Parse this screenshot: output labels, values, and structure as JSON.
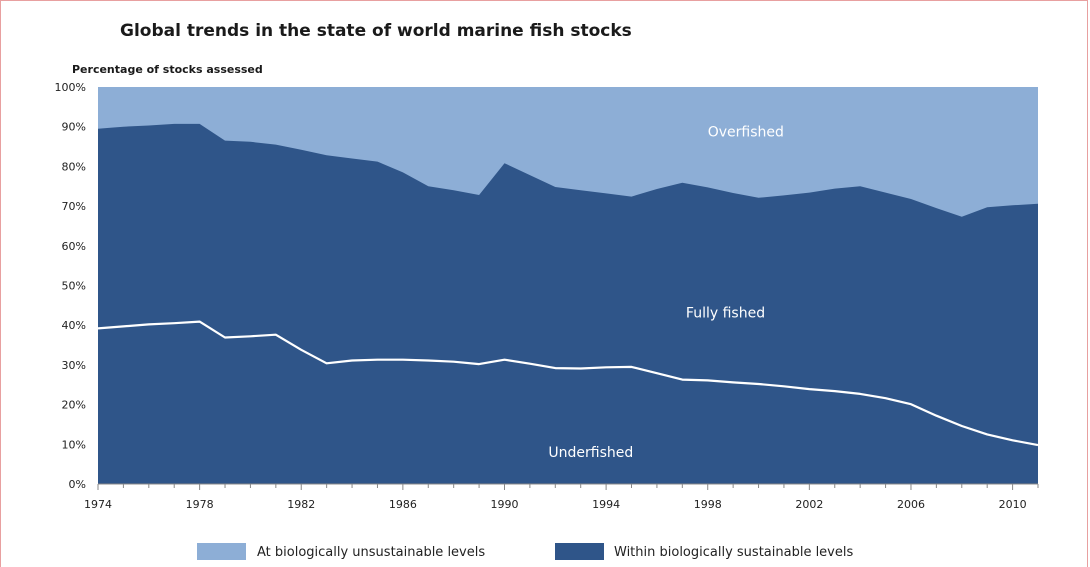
{
  "chart_data": {
    "type": "area",
    "title": "Global trends in the state of world marine fish stocks",
    "ylabel": "Percentage of stocks assessed",
    "xlabel": "",
    "xlim": [
      1974,
      2011
    ],
    "ylim": [
      0,
      100
    ],
    "x_ticks": [
      1974,
      1978,
      1982,
      1986,
      1990,
      1994,
      1998,
      2002,
      2006,
      2010
    ],
    "y_ticks": [
      "0%",
      "10%",
      "20%",
      "30%",
      "40%",
      "50%",
      "60%",
      "70%",
      "80%",
      "90%",
      "100%"
    ],
    "y_tick_values": [
      0,
      10,
      20,
      30,
      40,
      50,
      60,
      70,
      80,
      90,
      100
    ],
    "grid": false,
    "legend_position": "bottom",
    "series": [
      {
        "name": "At biologically unsustainable levels",
        "color": "#8daed6",
        "upper_boundary": 100
      },
      {
        "name": "Within biologically sustainable levels",
        "color": "#2f5589",
        "x": [
          1974,
          1975,
          1976,
          1977,
          1978,
          1979,
          1980,
          1981,
          1982,
          1983,
          1984,
          1985,
          1986,
          1987,
          1988,
          1989,
          1990,
          1991,
          1992,
          1993,
          1994,
          1995,
          1996,
          1997,
          1998,
          1999,
          2000,
          2001,
          2002,
          2003,
          2004,
          2005,
          2006,
          2007,
          2008,
          2009,
          2010,
          2011
        ],
        "values": [
          89.5,
          90,
          90.3,
          90.7,
          90.7,
          86.5,
          86.2,
          85.5,
          84.2,
          82.8,
          82,
          81.2,
          78.5,
          75,
          74,
          72.8,
          80.8,
          77.8,
          74.8,
          74,
          73.2,
          72.4,
          74.3,
          75.9,
          74.7,
          73.3,
          72.1,
          72.7,
          73.4,
          74.4,
          75,
          73.4,
          71.8,
          69.5,
          67.3,
          69.7,
          70.2,
          70.6
        ]
      }
    ],
    "underfished_line": {
      "color": "#ffffff",
      "x": [
        1974,
        1975,
        1976,
        1977,
        1978,
        1979,
        1980,
        1981,
        1982,
        1983,
        1984,
        1985,
        1986,
        1987,
        1988,
        1989,
        1990,
        1991,
        1992,
        1993,
        1994,
        1995,
        1996,
        1997,
        1998,
        1999,
        2000,
        2001,
        2002,
        2003,
        2004,
        2005,
        2006,
        2007,
        2008,
        2009,
        2010,
        2011
      ],
      "values": [
        39.2,
        39.7,
        40.2,
        40.5,
        40.9,
        36.9,
        37.2,
        37.6,
        33.8,
        30.4,
        31.1,
        31.3,
        31.3,
        31.1,
        30.8,
        30.2,
        31.3,
        30.3,
        29.2,
        29.1,
        29.4,
        29.5,
        27.9,
        26.3,
        26.1,
        25.6,
        25.2,
        24.6,
        23.9,
        23.4,
        22.7,
        21.6,
        20.1,
        17.2,
        14.6,
        12.5,
        11,
        9.8
      ]
    },
    "annotations": [
      {
        "text": "Overfished",
        "x": 1999.5,
        "y": 87.5
      },
      {
        "text": "Fully fished",
        "x": 1998.7,
        "y": 42
      },
      {
        "text": "Underfished",
        "x": 1993.4,
        "y": 6.8
      }
    ]
  }
}
